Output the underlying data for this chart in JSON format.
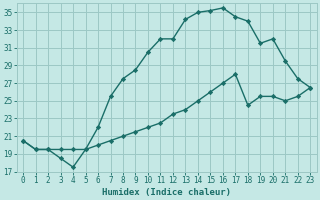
{
  "xlabel": "Humidex (Indice chaleur)",
  "bg_color": "#c5e8e5",
  "grid_color": "#9cc8c5",
  "line_color": "#1a6e68",
  "xlim": [
    -0.5,
    23.5
  ],
  "ylim": [
    17,
    36
  ],
  "yticks": [
    17,
    19,
    21,
    23,
    25,
    27,
    29,
    31,
    33,
    35
  ],
  "xticks": [
    0,
    1,
    2,
    3,
    4,
    5,
    6,
    7,
    8,
    9,
    10,
    11,
    12,
    13,
    14,
    15,
    16,
    17,
    18,
    19,
    20,
    21,
    22,
    23
  ],
  "line1_x": [
    0,
    1,
    2,
    3,
    4,
    5,
    6,
    7,
    8,
    9,
    10,
    11,
    12,
    13,
    14,
    15,
    16,
    17,
    18,
    19,
    20,
    21,
    22,
    23
  ],
  "line1_y": [
    20.5,
    19.5,
    19.5,
    18.5,
    17.5,
    19.5,
    22.0,
    25.5,
    27.5,
    28.5,
    30.5,
    32.0,
    32.0,
    34.2,
    35.0,
    35.2,
    35.5,
    34.5,
    34.0,
    31.5,
    32.0,
    29.5,
    27.5,
    26.5
  ],
  "line2_x": [
    0,
    1,
    2,
    3,
    4,
    5,
    6,
    7,
    8,
    9,
    10,
    11,
    12,
    13,
    14,
    15,
    16,
    17,
    18,
    19,
    20,
    21,
    22,
    23
  ],
  "line2_y": [
    20.5,
    19.5,
    19.5,
    19.5,
    19.5,
    19.5,
    20.0,
    20.5,
    21.0,
    21.5,
    22.0,
    22.5,
    23.5,
    24.0,
    25.0,
    26.0,
    27.0,
    28.0,
    24.5,
    25.5,
    25.5,
    25.0,
    25.5,
    26.5
  ]
}
